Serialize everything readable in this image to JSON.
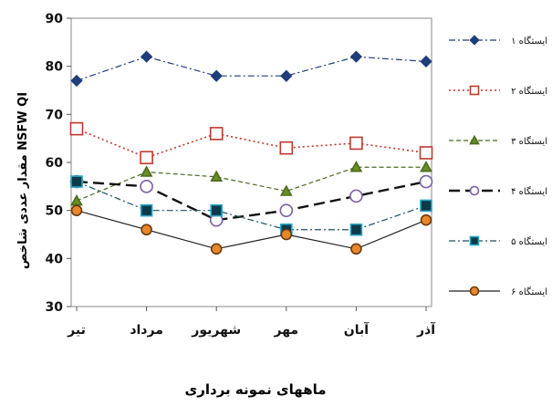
{
  "chart_data": {
    "type": "line",
    "title": "",
    "xlabel": "ماههای نمونه برداری",
    "ylabel": "مقدار عددی شاخص NSFW QI",
    "ylim": [
      30,
      90
    ],
    "yticks": [
      30,
      40,
      50,
      60,
      70,
      80,
      90
    ],
    "grid": false,
    "legend_position": "right",
    "categories": [
      "تیر",
      "مرداد",
      "شهریور",
      "مهر",
      "آبان",
      "آذر"
    ],
    "series": [
      {
        "name": "ایستگاه ۱",
        "values": [
          77,
          82,
          78,
          78,
          82,
          81
        ],
        "color": "#1f3d7a",
        "marker": "diamond",
        "marker_fill": "#1f3d7a",
        "marker_stroke": "#1f3d7a",
        "line_style": "dash-dot",
        "line_width": 1.2
      },
      {
        "name": "ایستگاه ۲",
        "values": [
          67,
          61,
          66,
          63,
          64,
          62
        ],
        "color": "#c0392b",
        "marker": "square-open",
        "marker_fill": "#ffffff",
        "marker_stroke": "#c0392b",
        "line_style": "dotted",
        "line_width": 1.6
      },
      {
        "name": "ایستگاه ۳",
        "values": [
          52,
          58,
          57,
          54,
          59,
          59
        ],
        "color": "#4a6b1f",
        "marker": "triangle",
        "marker_fill": "#6b8e23",
        "marker_stroke": "#4a6b1f",
        "line_style": "dashed",
        "line_width": 1.2
      },
      {
        "name": "ایستگاه ۴",
        "values": [
          56,
          55,
          48,
          50,
          53,
          56
        ],
        "color": "#111111",
        "marker": "circle-open",
        "marker_fill": "#ffffff",
        "marker_stroke": "#7b5ca8",
        "line_style": "long-dash",
        "line_width": 2.4
      },
      {
        "name": "ایستگاه ۵",
        "values": [
          56,
          50,
          50,
          46,
          46,
          51
        ],
        "color": "#1b4f5e",
        "marker": "square",
        "marker_fill": "#0c3a4a",
        "marker_stroke": "#2aa6c8",
        "line_style": "dash-dot",
        "line_width": 1.2
      },
      {
        "name": "ایستگاه ۶",
        "values": [
          50,
          46,
          42,
          45,
          42,
          48
        ],
        "color": "#222222",
        "marker": "circle",
        "marker_fill": "#e8862a",
        "marker_stroke": "#6b3a10",
        "line_style": "solid",
        "line_width": 1.2
      }
    ]
  }
}
